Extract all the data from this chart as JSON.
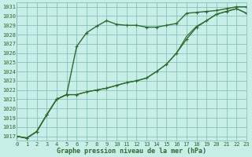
{
  "title": "Graphe pression niveau de la mer (hPa)",
  "background_color": "#c8eee8",
  "grid_color": "#7ab8b0",
  "line_color": "#2d6a2d",
  "xlim": [
    0,
    23
  ],
  "ylim": [
    1016.5,
    1031.5
  ],
  "yticks": [
    1017,
    1018,
    1019,
    1020,
    1021,
    1022,
    1023,
    1024,
    1025,
    1026,
    1027,
    1028,
    1029,
    1030,
    1031
  ],
  "xticks": [
    0,
    1,
    2,
    3,
    4,
    5,
    6,
    7,
    8,
    9,
    10,
    11,
    12,
    13,
    14,
    15,
    16,
    17,
    18,
    19,
    20,
    21,
    22,
    23
  ],
  "series": [
    {
      "y": [
        1017.0,
        1016.8,
        1017.5,
        1019.3,
        1021.0,
        1021.5,
        1026.7,
        1028.2,
        1028.9,
        1029.5,
        1029.1,
        1029.0,
        1029.0,
        1028.8,
        1028.8,
        1029.0,
        1029.2,
        1030.3,
        1030.4,
        1030.5,
        1030.6,
        1030.8,
        1031.0,
        1031.0
      ],
      "marker": true,
      "linewidth": 1.0
    },
    {
      "y": [
        1017.0,
        1016.8,
        1017.5,
        1019.3,
        1021.0,
        1021.5,
        1021.5,
        1021.8,
        1022.0,
        1022.2,
        1022.5,
        1022.8,
        1023.0,
        1023.3,
        1024.0,
        1024.8,
        1026.0,
        1027.5,
        1028.8,
        1029.5,
        1030.2,
        1030.5,
        1030.8,
        1030.3
      ],
      "marker": true,
      "linewidth": 1.0
    },
    {
      "y": [
        1017.0,
        1016.8,
        1017.5,
        1019.3,
        1021.0,
        1021.5,
        1021.5,
        1021.8,
        1022.0,
        1022.2,
        1022.5,
        1022.8,
        1023.0,
        1023.3,
        1024.0,
        1024.8,
        1026.0,
        1027.8,
        1028.9,
        1029.5,
        1030.2,
        1030.5,
        1030.8,
        1030.3
      ],
      "marker": false,
      "linewidth": 0.8
    }
  ]
}
